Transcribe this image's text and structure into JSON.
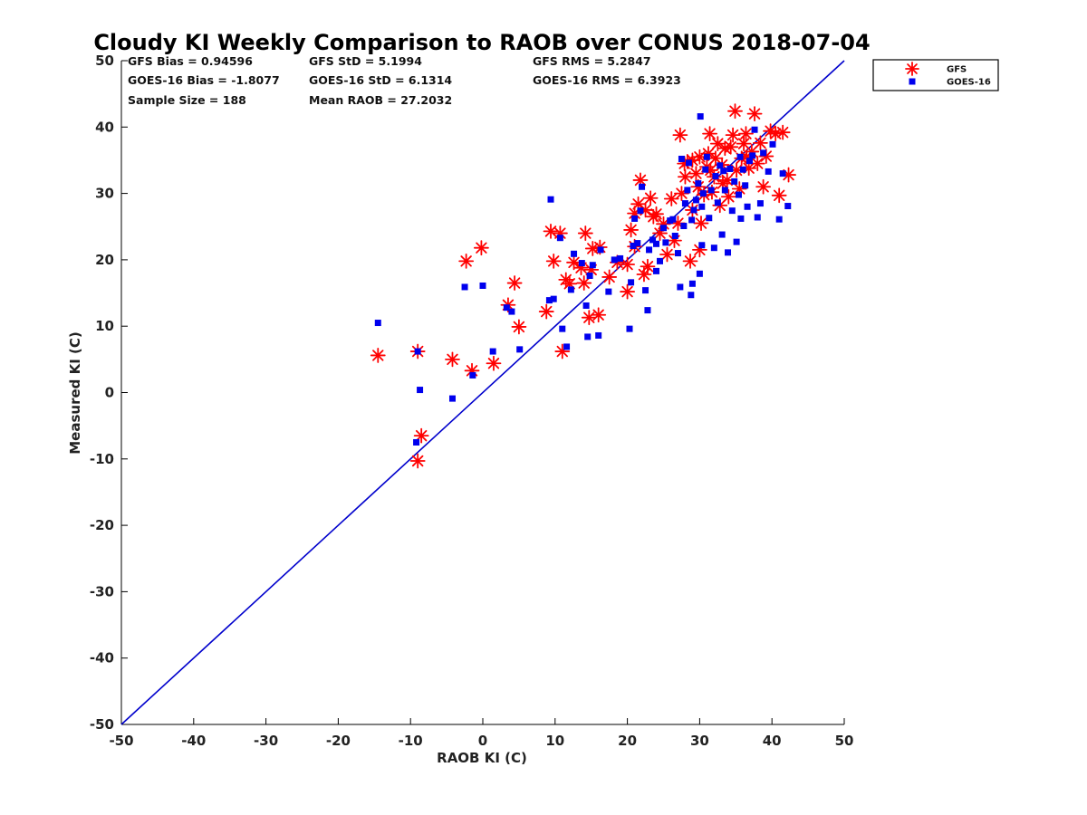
{
  "chart_data": {
    "type": "scatter",
    "title": "Cloudy KI Weekly Comparison to RAOB over CONUS 2018-07-04",
    "xlabel": "RAOB KI (C)",
    "ylabel": "Measured KI (C)",
    "xlim": [
      -50,
      50
    ],
    "ylim": [
      -50,
      50
    ],
    "xticks": [
      "-50",
      "-40",
      "-30",
      "-20",
      "-10",
      "0",
      "10",
      "20",
      "30",
      "40",
      "50"
    ],
    "yticks": [
      "-50",
      "-40",
      "-30",
      "-20",
      "-10",
      "0",
      "10",
      "20",
      "30",
      "40",
      "50"
    ],
    "grid": false,
    "legend_position": "outside top-right",
    "reference_line": {
      "x": [
        -50,
        50
      ],
      "y": [
        -50,
        50
      ],
      "color": "#0000cc"
    },
    "stats": [
      [
        "GFS Bias = 0.94596",
        "GFS StD = 5.1994",
        "GFS RMS = 5.2847"
      ],
      [
        "GOES-16 Bias = -1.8077",
        "GOES-16 StD = 6.1314",
        "GOES-16 RMS = 6.3923"
      ],
      [
        "Sample Size = 188",
        "Mean RAOB = 27.2032"
      ]
    ],
    "series": [
      {
        "name": "GFS",
        "marker": "asterisk",
        "color": "#ff0000",
        "points": [
          [
            -14.5,
            5.6
          ],
          [
            -9,
            6.2
          ],
          [
            -8.5,
            -6.5
          ],
          [
            -9,
            -10.3
          ],
          [
            -4.2,
            5
          ],
          [
            -2.3,
            19.8
          ],
          [
            -1.5,
            3.3
          ],
          [
            -0.2,
            21.8
          ],
          [
            1.5,
            4.4
          ],
          [
            3.5,
            13.2
          ],
          [
            4.4,
            16.5
          ],
          [
            5,
            9.9
          ],
          [
            8.8,
            12.2
          ],
          [
            9.4,
            24.3
          ],
          [
            9.8,
            19.8
          ],
          [
            10.7,
            24
          ],
          [
            11,
            6.2
          ],
          [
            11.5,
            17
          ],
          [
            12,
            16.4
          ],
          [
            12.6,
            19.6
          ],
          [
            13.6,
            18.8
          ],
          [
            14.2,
            24
          ],
          [
            14,
            16.5
          ],
          [
            14.7,
            11.3
          ],
          [
            15.2,
            21.7
          ],
          [
            15,
            18.5
          ],
          [
            16,
            11.7
          ],
          [
            16.2,
            21.9
          ],
          [
            17.5,
            17.4
          ],
          [
            18.6,
            19.6
          ],
          [
            20,
            19.3
          ],
          [
            20,
            15.2
          ],
          [
            20.5,
            24.5
          ],
          [
            21,
            27
          ],
          [
            21,
            22
          ],
          [
            21.5,
            28.4
          ],
          [
            21.8,
            32
          ],
          [
            22.3,
            17.8
          ],
          [
            22.5,
            27.5
          ],
          [
            22.8,
            19
          ],
          [
            23.2,
            29.3
          ],
          [
            23.6,
            26.5
          ],
          [
            24,
            26.9
          ],
          [
            24.5,
            24
          ],
          [
            25,
            25.4
          ],
          [
            25.5,
            20.8
          ],
          [
            26.1,
            29.2
          ],
          [
            26.5,
            22.9
          ],
          [
            27,
            25.5
          ],
          [
            27.3,
            38.8
          ],
          [
            27.5,
            30
          ],
          [
            28,
            32.5
          ],
          [
            28.3,
            34.8
          ],
          [
            28.7,
            19.8
          ],
          [
            29,
            27.5
          ],
          [
            29,
            35
          ],
          [
            29.5,
            33
          ],
          [
            29.8,
            31
          ],
          [
            30,
            21.5
          ],
          [
            30,
            35.5
          ],
          [
            30.2,
            25.5
          ],
          [
            30.6,
            29.8
          ],
          [
            31,
            34
          ],
          [
            31.2,
            36
          ],
          [
            31.4,
            39
          ],
          [
            31.7,
            30.2
          ],
          [
            32,
            32.5
          ],
          [
            32.2,
            35.3
          ],
          [
            32.5,
            37.5
          ],
          [
            32.8,
            28.2
          ],
          [
            33.1,
            34.3
          ],
          [
            33.5,
            36.8
          ],
          [
            33.8,
            32
          ],
          [
            34,
            29.5
          ],
          [
            34.3,
            37
          ],
          [
            34.6,
            38.8
          ],
          [
            34.9,
            42.4
          ],
          [
            35.1,
            33.5
          ],
          [
            35.5,
            30.7
          ],
          [
            35.8,
            35.3
          ],
          [
            36.1,
            37.5
          ],
          [
            36.4,
            39
          ],
          [
            36.8,
            33.8
          ],
          [
            37.2,
            36.3
          ],
          [
            37.6,
            42
          ],
          [
            38,
            34.5
          ],
          [
            38.4,
            37.6
          ],
          [
            38.8,
            31
          ],
          [
            39.2,
            35.6
          ],
          [
            39.8,
            39.4
          ],
          [
            40.5,
            39
          ],
          [
            41,
            29.7
          ],
          [
            41.5,
            39.2
          ],
          [
            42.3,
            32.8
          ],
          [
            27.9,
            34.5
          ],
          [
            31.5,
            33.5
          ],
          [
            33.2,
            31.5
          ],
          [
            36.5,
            35.5
          ]
        ]
      },
      {
        "name": "GOES-16",
        "marker": "square",
        "color": "#0000ee",
        "points": [
          [
            -14.5,
            10.5
          ],
          [
            -9.2,
            -7.5
          ],
          [
            -9,
            6.2
          ],
          [
            -8.7,
            0.4
          ],
          [
            -4.2,
            -0.9
          ],
          [
            -2.5,
            15.9
          ],
          [
            -1.4,
            2.6
          ],
          [
            0,
            16.1
          ],
          [
            1.4,
            6.2
          ],
          [
            3.3,
            12.8
          ],
          [
            4,
            12.2
          ],
          [
            5.1,
            6.5
          ],
          [
            9.2,
            13.9
          ],
          [
            9.4,
            29.1
          ],
          [
            9.8,
            14.1
          ],
          [
            10.7,
            23.3
          ],
          [
            11,
            9.6
          ],
          [
            11.6,
            6.9
          ],
          [
            12.2,
            15.5
          ],
          [
            12.6,
            20.9
          ],
          [
            13.7,
            19.5
          ],
          [
            14.3,
            13.1
          ],
          [
            14.5,
            8.4
          ],
          [
            14.8,
            17.6
          ],
          [
            15.2,
            19.2
          ],
          [
            16,
            8.6
          ],
          [
            16.3,
            21.5
          ],
          [
            17.4,
            15.2
          ],
          [
            18.2,
            20
          ],
          [
            19,
            20.2
          ],
          [
            20.3,
            9.6
          ],
          [
            20.5,
            16.6
          ],
          [
            20.8,
            22.1
          ],
          [
            21,
            26.2
          ],
          [
            21.4,
            22.5
          ],
          [
            21.8,
            27.4
          ],
          [
            22,
            31
          ],
          [
            22.5,
            15.4
          ],
          [
            22.8,
            12.4
          ],
          [
            23,
            21.5
          ],
          [
            23.5,
            23
          ],
          [
            24,
            18.3
          ],
          [
            24,
            22.4
          ],
          [
            24.5,
            19.8
          ],
          [
            25,
            24.8
          ],
          [
            25.3,
            22.6
          ],
          [
            25.9,
            25.9
          ],
          [
            26.3,
            26.1
          ],
          [
            26.6,
            23.6
          ],
          [
            27,
            21
          ],
          [
            27.3,
            15.9
          ],
          [
            27.5,
            35.2
          ],
          [
            27.8,
            25.1
          ],
          [
            28,
            28.5
          ],
          [
            28.3,
            30.5
          ],
          [
            28.5,
            34.6
          ],
          [
            28.8,
            14.7
          ],
          [
            29,
            16.4
          ],
          [
            29.2,
            27.5
          ],
          [
            29.5,
            29
          ],
          [
            29.8,
            31.5
          ],
          [
            30,
            17.9
          ],
          [
            30.1,
            41.6
          ],
          [
            30.3,
            22.2
          ],
          [
            30.5,
            30
          ],
          [
            30.8,
            33.6
          ],
          [
            31,
            35.5
          ],
          [
            31.3,
            26.3
          ],
          [
            31.6,
            30.5
          ],
          [
            32,
            21.8
          ],
          [
            32.2,
            32.6
          ],
          [
            32.5,
            28.6
          ],
          [
            32.8,
            34.2
          ],
          [
            33.1,
            23.8
          ],
          [
            33.5,
            30.5
          ],
          [
            33.9,
            21.1
          ],
          [
            34.2,
            33.7
          ],
          [
            34.5,
            27.4
          ],
          [
            34.8,
            31.8
          ],
          [
            35.1,
            22.7
          ],
          [
            35.4,
            29.8
          ],
          [
            35.7,
            26.2
          ],
          [
            36,
            33.6
          ],
          [
            36.3,
            31.2
          ],
          [
            36.6,
            28
          ],
          [
            36.9,
            34.9
          ],
          [
            37.3,
            35.7
          ],
          [
            37.6,
            39.6
          ],
          [
            38,
            26.4
          ],
          [
            38.4,
            28.5
          ],
          [
            38.8,
            36.1
          ],
          [
            39.5,
            33.3
          ],
          [
            40.1,
            37.4
          ],
          [
            41,
            26.1
          ],
          [
            41.5,
            33
          ],
          [
            42.2,
            28.1
          ],
          [
            30.3,
            28
          ],
          [
            33.3,
            33.4
          ],
          [
            35.6,
            35.5
          ],
          [
            28.9,
            26
          ]
        ]
      }
    ]
  }
}
